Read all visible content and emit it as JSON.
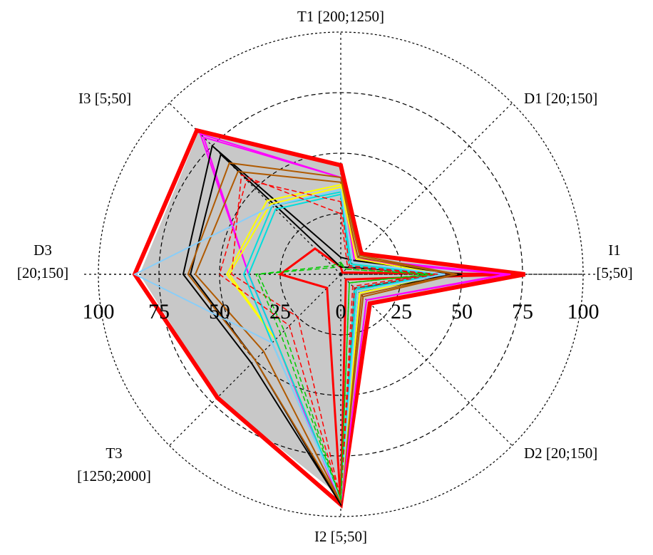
{
  "chart_data": {
    "type": "radar",
    "axes": [
      {
        "id": "T1",
        "label": "T1 [200;1250]",
        "lines": [
          "T1  [200;1250]"
        ]
      },
      {
        "id": "D1",
        "label": "D1 [20;150]",
        "lines": [
          "D1  [20;150]"
        ]
      },
      {
        "id": "I1",
        "label": "I1 [5;50]",
        "lines": [
          "I1",
          "[5;50]"
        ]
      },
      {
        "id": "D2",
        "label": "D2 [20;150]",
        "lines": [
          "D2  [20;150]"
        ]
      },
      {
        "id": "I2",
        "label": "I2 [5;50]",
        "lines": [
          "I2 [5;50]"
        ]
      },
      {
        "id": "T3",
        "label": "T3 [1250;2000]",
        "lines": [
          "T3",
          "[1250;2000]"
        ]
      },
      {
        "id": "D3",
        "label": "D3 [20;150]",
        "lines": [
          "D3",
          "[20;150]"
        ]
      },
      {
        "id": "I3",
        "label": "I3 [5;50]",
        "lines": [
          "I3 [5;50]"
        ]
      }
    ],
    "r_range": [
      0,
      100
    ],
    "grid_rings": [
      25,
      50,
      75,
      100
    ],
    "tick_labels_left": [
      "100",
      "75",
      "50",
      "25",
      "0"
    ],
    "tick_labels_right": [
      "25",
      "50",
      "75",
      "100"
    ],
    "series": [
      {
        "color": "#c8c8c8",
        "fill": true,
        "dash": "solid",
        "width": 0,
        "values": [
          45,
          12,
          74,
          17,
          92,
          72,
          83,
          83
        ]
      },
      {
        "color": "#ff0000",
        "dash": "solid",
        "width": 6,
        "values": [
          45,
          12,
          76,
          17,
          95,
          72,
          85,
          84
        ]
      },
      {
        "color": "#ff0000",
        "dash": "solid",
        "width": 3,
        "values": [
          3,
          1,
          76,
          3,
          95,
          8,
          25,
          15
        ]
      },
      {
        "color": "#ff00ff",
        "dash": "solid",
        "width": 2,
        "values": [
          40,
          8,
          68,
          15,
          95,
          38,
          38,
          80
        ]
      },
      {
        "color": "#ff00ff",
        "dash": "solid",
        "width": 2,
        "values": [
          40,
          9,
          70,
          15,
          95,
          38,
          38,
          82
        ]
      },
      {
        "color": "#000000",
        "dash": "solid",
        "width": 2,
        "values": [
          7,
          8,
          50,
          10,
          95,
          52,
          65,
          75
        ]
      },
      {
        "color": "#000000",
        "dash": "solid",
        "width": 2,
        "values": [
          3,
          4,
          48,
          8,
          95,
          50,
          62,
          70
        ]
      },
      {
        "color": "#b05a00",
        "dash": "solid",
        "width": 2,
        "values": [
          40,
          11,
          48,
          13,
          94,
          50,
          63,
          65
        ]
      },
      {
        "color": "#b05a00",
        "dash": "solid",
        "width": 2,
        "values": [
          38,
          10,
          47,
          12,
          94,
          45,
          60,
          60
        ]
      },
      {
        "color": "#ffff00",
        "dash": "solid",
        "width": 2,
        "values": [
          37,
          9,
          42,
          11,
          93,
          38,
          47,
          43
        ]
      },
      {
        "color": "#ffff00",
        "dash": "solid",
        "width": 2,
        "values": [
          36,
          7,
          40,
          10,
          93,
          38,
          46,
          41
        ]
      },
      {
        "color": "#00dddd",
        "dash": "solid",
        "width": 2,
        "values": [
          34,
          6,
          42,
          9,
          93,
          40,
          40,
          40
        ]
      },
      {
        "color": "#00dddd",
        "dash": "solid",
        "width": 2,
        "values": [
          33,
          5,
          39,
          8,
          93,
          38,
          38,
          38
        ]
      },
      {
        "color": "#87cefa",
        "dash": "solid",
        "width": 2,
        "values": [
          35,
          7,
          43,
          10,
          93,
          40,
          85,
          40
        ]
      },
      {
        "color": "#ff0000",
        "dash": "dashed",
        "width": 1.5,
        "values": [
          30,
          5,
          40,
          8,
          93,
          30,
          50,
          55
        ]
      },
      {
        "color": "#ff0000",
        "dash": "dashed",
        "width": 1.5,
        "values": [
          25,
          4,
          38,
          7,
          93,
          25,
          45,
          58
        ]
      },
      {
        "color": "#00cc00",
        "dash": "dashed",
        "width": 1.5,
        "values": [
          5,
          3,
          38,
          5,
          93,
          35,
          35,
          5
        ]
      },
      {
        "color": "#00cc00",
        "dash": "dashed",
        "width": 1.5,
        "values": [
          4,
          3,
          36,
          5,
          93,
          33,
          34,
          4
        ]
      }
    ]
  }
}
